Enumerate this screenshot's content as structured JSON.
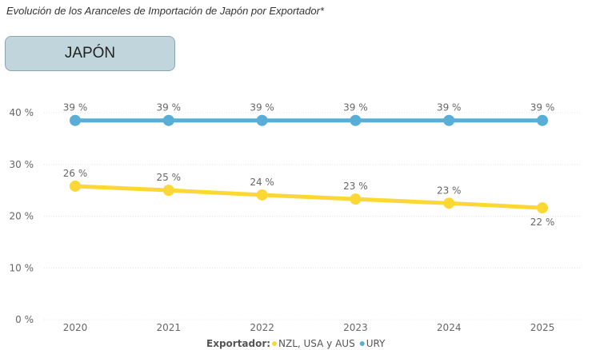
{
  "title": "Evolución de los Aranceles de Importación de Japón por Exportador*",
  "country_button": "JAPÓN",
  "chart_data": {
    "type": "line",
    "categories": [
      "2020",
      "2021",
      "2022",
      "2023",
      "2024",
      "2025"
    ],
    "ylim": [
      0,
      40
    ],
    "yticks": [
      0,
      10,
      20,
      30,
      40
    ],
    "ytick_labels": [
      "0 %",
      "10 %",
      "20 %",
      "30 %",
      "40 %"
    ],
    "grid": true,
    "legend_title": "Exportador:",
    "legend_position": "bottom",
    "series": [
      {
        "name": "NZL, USA y AUS",
        "color": "#fdd835",
        "values": [
          25.8,
          25.0,
          24.1,
          23.3,
          22.5,
          21.6
        ],
        "labels": [
          "26 %",
          "25 %",
          "24 %",
          "23 %",
          "23 %",
          "22 %"
        ]
      },
      {
        "name": "URY",
        "color": "#58aed6",
        "values": [
          38.5,
          38.5,
          38.5,
          38.5,
          38.5,
          38.5
        ],
        "labels": [
          "39 %",
          "39 %",
          "39 %",
          "39 %",
          "39 %",
          "39 %"
        ]
      }
    ]
  }
}
